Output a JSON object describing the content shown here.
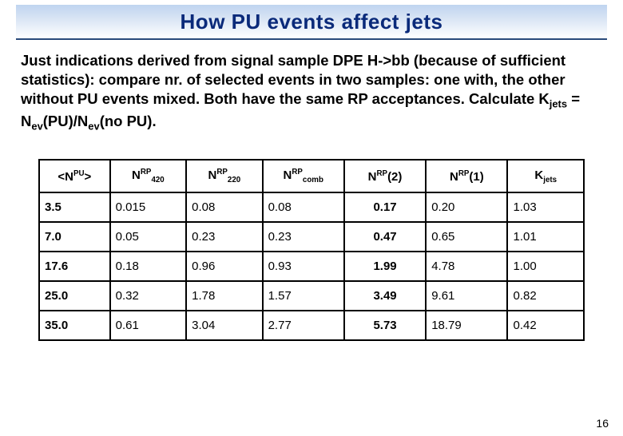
{
  "title": "How PU events affect jets",
  "intro_html": "Just indications derived from signal sample DPE H->bb (because of sufficient statistics): compare nr. of selected events in two samples: one with, the other without PU events mixed. Both have the same RP acceptances. Calculate K<span class=\"sub\">jets</span> = N<span class=\"sub\">ev</span>(PU)/N<span class=\"sub\">ev</span>(no PU).",
  "table": {
    "columns": [
      {
        "html": "&lt;N<span class=\"sup\">PU</span>&gt;",
        "width": "13%"
      },
      {
        "html": "N<span class=\"sup\">RP</span><span class=\"subx\">420</span>",
        "width": "14%"
      },
      {
        "html": "N<span class=\"sup\">RP</span><span class=\"subx\">220</span>",
        "width": "14%"
      },
      {
        "html": "N<span class=\"sup\">RP</span><span class=\"subx\">comb</span>",
        "width": "15%"
      },
      {
        "html": "N<span class=\"sup\">RP</span>(2)",
        "width": "15%",
        "bold": true
      },
      {
        "html": "N<span class=\"sup\">RP</span>(1)",
        "width": "15%"
      },
      {
        "html": "K<span class=\"subx\">jets</span>",
        "width": "14%"
      }
    ],
    "bold_col_index": 4,
    "rows": [
      [
        "3.5",
        "0.015",
        "0.08",
        "0.08",
        "0.17",
        "0.20",
        "1.03"
      ],
      [
        "7.0",
        "0.05",
        "0.23",
        "0.23",
        "0.47",
        "0.65",
        "1.01"
      ],
      [
        "17.6",
        "0.18",
        "0.96",
        "0.93",
        "1.99",
        "4.78",
        "1.00"
      ],
      [
        "25.0",
        "0.32",
        "1.78",
        "1.57",
        "3.49",
        "9.61",
        "0.82"
      ],
      [
        "35.0",
        "0.61",
        "3.04",
        "2.77",
        "5.73",
        "18.79",
        "0.42"
      ]
    ]
  },
  "page_number": "16",
  "styles": {
    "title_color": "#0a2a7a",
    "border_color": "#000000",
    "font_intro": "Comic Sans MS",
    "font_table": "Verdana"
  }
}
